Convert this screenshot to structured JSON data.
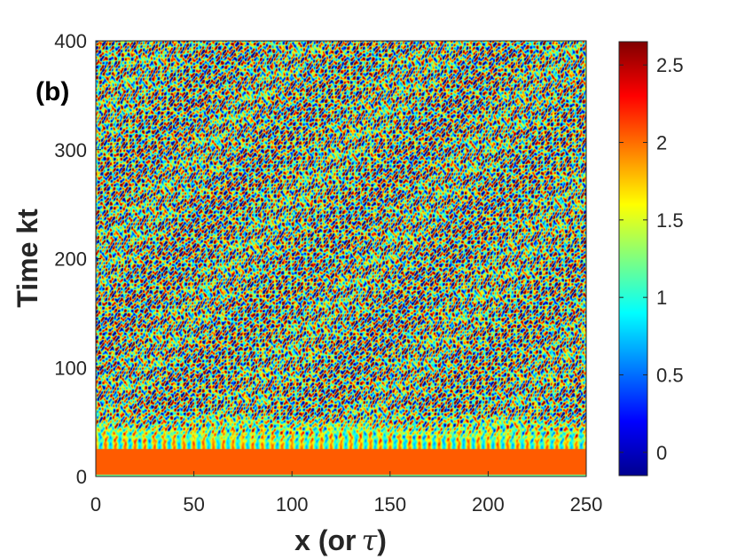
{
  "chart_data": {
    "type": "heatmap",
    "panel_label": "(b)",
    "xlabel": "x (or",
    "xlabel_symbol": "τ",
    "xlabel_close": ")",
    "ylabel": "Time kt",
    "xlim": [
      0,
      250
    ],
    "ylim": [
      0,
      400
    ],
    "x_ticks": [
      "0",
      "50",
      "100",
      "150",
      "200",
      "250"
    ],
    "y_ticks": [
      "0",
      "100",
      "200",
      "300",
      "400"
    ],
    "x_tick_values": [
      0,
      50,
      100,
      150,
      200,
      250
    ],
    "y_tick_values": [
      0,
      100,
      200,
      300,
      400
    ],
    "colorbar": {
      "range": [
        -0.15,
        2.65
      ],
      "ticks": [
        "0",
        "0.5",
        "1",
        "1.5",
        "2",
        "2.5"
      ],
      "tick_values": [
        0,
        0.5,
        1,
        1.5,
        2,
        2.5
      ],
      "colormap": "jet"
    },
    "regions": [
      {
        "t_range": [
          0,
          2
        ],
        "value": 1.2
      },
      {
        "t_range": [
          2,
          25
        ],
        "value": 2.05
      },
      {
        "t_range": [
          25,
          60
        ],
        "pattern": "periodic filaments",
        "x_period": 5,
        "values": [
          0.7,
          2.05
        ]
      },
      {
        "t_range": [
          60,
          400
        ],
        "pattern": "spatiotemporal chaos",
        "values": [
          0,
          2.6
        ]
      }
    ]
  }
}
